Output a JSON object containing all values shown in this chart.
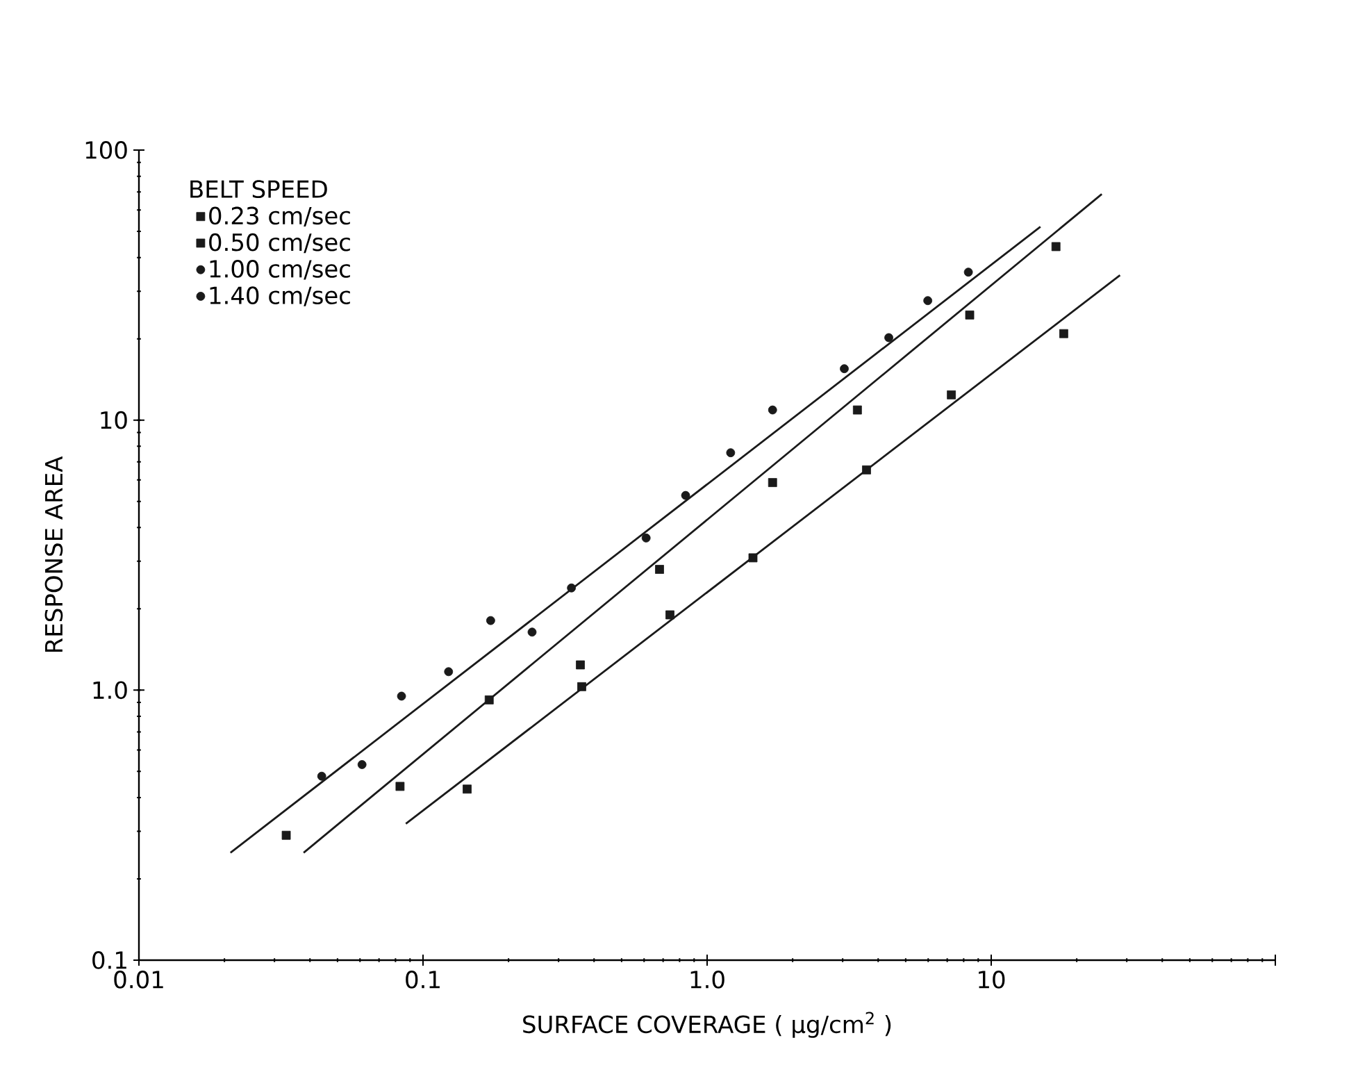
{
  "chart_data": {
    "type": "scatter",
    "xlabel": "SURFACE   COVERAGE   ( μg/cm$^{2}$ )",
    "ylabel": "RESPONSE   AREA",
    "legend_title": "BELT   SPEED",
    "log": "xy",
    "xlim": [
      0.01,
      100
    ],
    "ylim": [
      0.1,
      100
    ],
    "xticks": [
      0.01,
      0.1,
      {
        "value": 1,
        "label": "1.0"
      },
      10,
      {
        "value": 100,
        "label": null
      }
    ],
    "yticks": [
      0.1,
      {
        "value": 1,
        "label": "1.0"
      },
      10,
      100
    ],
    "grid": false,
    "legend": "top left",
    "series": [
      {
        "name": "0.23 cm/sec",
        "color": "#1a1a1a",
        "marker": "square",
        "x": [
          0.143,
          0.362,
          0.74,
          1.45,
          3.64,
          7.24,
          18.0,
          0.171,
          8.4,
          16.9
        ],
        "values": [
          0.43,
          1.03,
          1.9,
          3.09,
          6.54,
          12.4,
          20.9,
          0.92,
          24.5,
          43.9
        ]
      },
      {
        "name": "0.50 cm/sec",
        "color": "#1a1a1a",
        "marker": "square",
        "x": [
          0.033,
          0.083,
          0.358,
          0.68,
          1.7,
          3.38
        ],
        "values": [
          0.29,
          0.44,
          1.24,
          2.8,
          5.87,
          10.9
        ]
      },
      {
        "name": "1.00 cm/sec",
        "color": "#1a1a1a",
        "marker": "circle",
        "x": [
          0.044,
          0.061,
          0.123,
          0.242,
          0.61,
          1.21,
          3.04,
          5.98,
          8.31
        ],
        "values": [
          0.48,
          0.53,
          1.17,
          1.64,
          3.66,
          7.57,
          15.5,
          27.7,
          35.3
        ]
      },
      {
        "name": "1.40 cm/sec",
        "color": "#1a1a1a",
        "marker": "circle",
        "x": [
          0.084,
          0.173,
          0.333,
          0.84,
          1.7,
          4.36
        ],
        "values": [
          0.95,
          1.81,
          2.39,
          5.26,
          10.9,
          20.2
        ]
      },
      {
        "type": "line",
        "color": "#1a1a1a",
        "marker": "none",
        "x": [
          0.021,
          14.9
        ],
        "values": [
          0.25,
          52
        ]
      },
      {
        "type": "line",
        "color": "#1a1a1a",
        "marker": "none",
        "x": [
          0.038,
          24.5
        ],
        "values": [
          0.25,
          68.7
        ]
      },
      {
        "type": "line",
        "color": "#1a1a1a",
        "marker": "none",
        "x": [
          0.087,
          28.4
        ],
        "values": [
          0.32,
          34.4
        ]
      }
    ]
  }
}
